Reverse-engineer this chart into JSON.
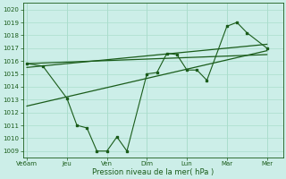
{
  "title": "",
  "xlabel": "Pression niveau de la mer( hPa )",
  "bg_color": "#cceee8",
  "grid_color": "#aaddcc",
  "line_color": "#1a5c1a",
  "ylim": [
    1008.5,
    1020.5
  ],
  "yticks": [
    1009,
    1010,
    1011,
    1012,
    1013,
    1014,
    1015,
    1016,
    1017,
    1018,
    1019,
    1020
  ],
  "tick_labels": [
    "Ve6am",
    "Jeu",
    "Ven",
    "Dim",
    "Lun",
    "Mar",
    "Mer"
  ],
  "tick_positions": [
    0,
    1,
    2,
    3,
    4,
    5,
    6
  ],
  "xlim": [
    -0.1,
    6.4
  ],
  "series_x": [
    0,
    0.4,
    1.0,
    1.25,
    1.5,
    1.75,
    2.0,
    2.25,
    2.5,
    3.0,
    3.25,
    3.5,
    3.75,
    4.0,
    4.25,
    4.5,
    5.0,
    5.25,
    5.5,
    6.0
  ],
  "series_y": [
    1015.8,
    1015.6,
    1013.1,
    1011.0,
    1010.8,
    1009.0,
    1009.0,
    1010.1,
    1009.0,
    1015.0,
    1015.1,
    1016.6,
    1016.5,
    1015.3,
    1015.3,
    1014.5,
    1018.7,
    1019.0,
    1018.2,
    1017.0
  ],
  "trend1_x": [
    0,
    6.0
  ],
  "trend1_y": [
    1015.8,
    1016.5
  ],
  "trend2_x": [
    0,
    6.0
  ],
  "trend2_y": [
    1015.5,
    1017.3
  ],
  "trend3_x": [
    0,
    6.0
  ],
  "trend3_y": [
    1012.5,
    1016.8
  ]
}
